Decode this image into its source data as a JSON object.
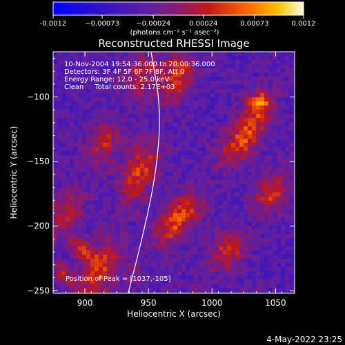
{
  "chart_data": {
    "type": "heatmap",
    "title": "Reconstructed RHESSI Image",
    "xlabel": "Heliocentric X (arcsec)",
    "ylabel": "Heliocentric Y (arcsec)",
    "xlim": [
      875,
      1065
    ],
    "ylim": [
      -252,
      -65
    ],
    "x_ticks": [
      900,
      950,
      1000,
      1050
    ],
    "y_ticks": [
      -100,
      -150,
      -200,
      -250
    ],
    "colorbar": {
      "range": [
        -0.0012,
        0.0012
      ],
      "ticks": [
        "-0.0012",
        "−0.00073",
        "−0.00024",
        "0.00024",
        "0.00073",
        "0.0012"
      ],
      "tick_values": [
        -0.0012,
        -0.00073,
        -0.00024,
        0.00024,
        0.00073,
        0.0012
      ],
      "unit_label": "(photons cm⁻² s⁻¹ asec⁻²)"
    },
    "annotations": [
      "10-Nov-2004 19:54:36.000 to 20:00:36.000",
      "Detectors: 3F 4F 5F 6F 7F 8F, Att 0",
      "Energy Range: 12.0 - 25.0 keV",
      "Clean     Total counts: 2.17E+03"
    ],
    "peak": {
      "label": "Position of Peak = [1037,-105]",
      "x": 1037,
      "y": -105
    },
    "limb_curve": [
      [
        952,
        -65
      ],
      [
        960,
        -110
      ],
      [
        956,
        -160
      ],
      [
        945,
        -210
      ],
      [
        934,
        -252
      ]
    ],
    "intensity_field": {
      "background": -0.0004,
      "ridges": [
        {
          "x0": 905,
          "y0": -252,
          "x1": 975,
          "y1": -80,
          "amp": 0.0008
        },
        {
          "x0": 880,
          "y0": -200,
          "x1": 945,
          "y1": -80,
          "amp": 0.0006
        },
        {
          "x0": 940,
          "y0": -235,
          "x1": 1055,
          "y1": -95,
          "amp": 0.0009
        },
        {
          "x0": 990,
          "y0": -250,
          "x1": 1065,
          "y1": -150,
          "amp": 0.0007
        },
        {
          "x0": 870,
          "y0": -252,
          "x1": 905,
          "y1": -210,
          "amp": 0.0006
        }
      ],
      "peak_amp": 0.0012
    }
  },
  "footer_date": "4-May-2022 23:25"
}
